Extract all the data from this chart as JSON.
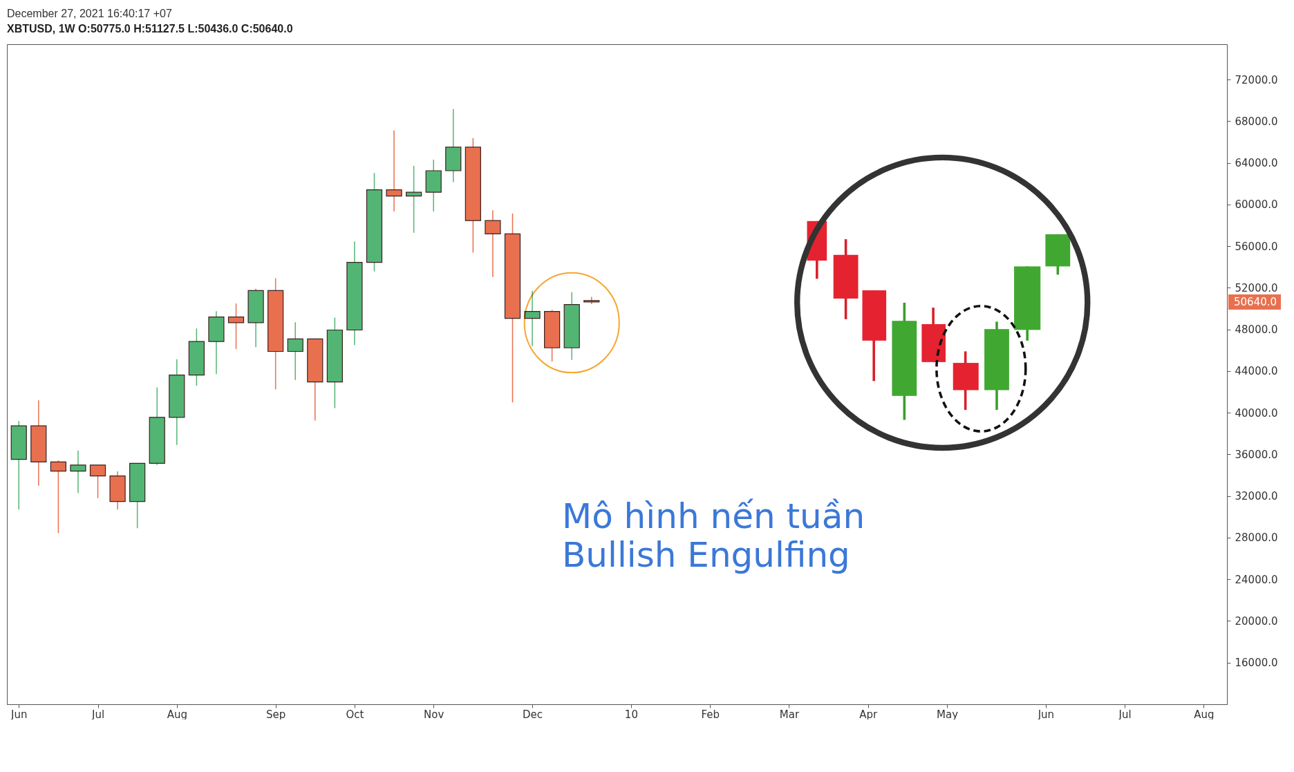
{
  "chart_data": {
    "type": "candlestick",
    "title": "December 27, 2021 16:40:17 +07",
    "subtitle": "XBTUSD, 1W O:50775.0 H:51127.5 L:50436.0 C:50640.0",
    "x": [
      "2021-06-07",
      "2021-06-14",
      "2021-06-21",
      "2021-06-28",
      "2021-07-05",
      "2021-07-12",
      "2021-07-19",
      "2021-07-26",
      "2021-08-02",
      "2021-08-09",
      "2021-08-16",
      "2021-08-23",
      "2021-08-30",
      "2021-09-06",
      "2021-09-13",
      "2021-09-20",
      "2021-09-27",
      "2021-10-04",
      "2021-10-11",
      "2021-10-18",
      "2021-10-25",
      "2021-11-01",
      "2021-11-08",
      "2021-11-15",
      "2021-11-22",
      "2021-11-29",
      "2021-12-06",
      "2021-12-13",
      "2021-12-20",
      "2021-12-27"
    ],
    "ohlc": [
      [
        35530,
        39200,
        30700,
        38740
      ],
      [
        38740,
        41200,
        33000,
        35280
      ],
      [
        35280,
        35420,
        28440,
        34400
      ],
      [
        34400,
        36360,
        32300,
        34980
      ],
      [
        34980,
        34980,
        31800,
        33930
      ],
      [
        33930,
        34370,
        30700,
        31470
      ],
      [
        31470,
        35150,
        28910,
        35150
      ],
      [
        35150,
        42440,
        34980,
        39560
      ],
      [
        39560,
        45140,
        36910,
        43620
      ],
      [
        43620,
        48100,
        42600,
        46850
      ],
      [
        46850,
        49750,
        43710,
        49200
      ],
      [
        49200,
        50500,
        46110,
        48650
      ],
      [
        48650,
        51910,
        46300,
        51740
      ],
      [
        51740,
        52930,
        42240,
        45890
      ],
      [
        45890,
        48700,
        43150,
        47100
      ],
      [
        47100,
        47130,
        39260,
        42960
      ],
      [
        42960,
        49140,
        40450,
        47950
      ],
      [
        47950,
        56450,
        46510,
        54440
      ],
      [
        54440,
        63030,
        53580,
        61420
      ],
      [
        61420,
        67120,
        59340,
        60820
      ],
      [
        60820,
        63720,
        57290,
        61180
      ],
      [
        61180,
        64310,
        59340,
        63250
      ],
      [
        63250,
        69170,
        62150,
        65510
      ],
      [
        65510,
        66390,
        55390,
        58460
      ],
      [
        58460,
        59450,
        53050,
        57180
      ],
      [
        57180,
        59140,
        40990,
        49070
      ],
      [
        49070,
        51700,
        46400,
        49730
      ],
      [
        49730,
        49890,
        44920,
        46240
      ],
      [
        46240,
        51590,
        45070,
        50400
      ],
      [
        50775,
        51127.5,
        50436,
        50640
      ]
    ],
    "colors": [
      "#53b574",
      "#e8704f",
      "#e8704f",
      "#53b574",
      "#e8704f",
      "#e8704f",
      "#53b574",
      "#53b574",
      "#53b574",
      "#53b574",
      "#53b574",
      "#e8704f",
      "#53b574",
      "#e8704f",
      "#53b574",
      "#e8704f",
      "#53b574",
      "#53b574",
      "#53b574",
      "#e8704f",
      "#53b574",
      "#53b574",
      "#53b574",
      "#e8704f",
      "#e8704f",
      "#e8704f",
      "#53b574",
      "#e8704f",
      "#53b574",
      "#e8704f"
    ],
    "xlim": [
      "2021-06-04",
      "2022-08-08"
    ],
    "xticks": [
      {
        "value": "2021-06-07",
        "label": "Jun"
      },
      {
        "value": "2021-07-05",
        "label": "Jul"
      },
      {
        "value": "2021-08-02",
        "label": "Aug"
      },
      {
        "value": "2021-09-06",
        "label": "Sep"
      },
      {
        "value": "2021-10-04",
        "label": "Oct"
      },
      {
        "value": "2021-11-01",
        "label": "Nov"
      },
      {
        "value": "2021-12-06",
        "label": "Dec"
      },
      {
        "value": "2022-01-10",
        "label": "10"
      },
      {
        "value": "2022-02-07",
        "label": "Feb"
      },
      {
        "value": "2022-03-07",
        "label": "Mar"
      },
      {
        "value": "2022-04-04",
        "label": "Apr"
      },
      {
        "value": "2022-05-02",
        "label": "May"
      },
      {
        "value": "2022-06-06",
        "label": "Jun"
      },
      {
        "value": "2022-07-04",
        "label": "Jul"
      },
      {
        "value": "2022-08-01",
        "label": "Aug"
      }
    ],
    "ylim": [
      12000,
      75400
    ],
    "yticks": [
      {
        "value": 16000,
        "label": "16000.0"
      },
      {
        "value": 20000,
        "label": "20000.0"
      },
      {
        "value": 24000,
        "label": "24000.0"
      },
      {
        "value": 28000,
        "label": "28000.0"
      },
      {
        "value": 32000,
        "label": "32000.0"
      },
      {
        "value": 36000,
        "label": "36000.0"
      },
      {
        "value": 40000,
        "label": "40000.0"
      },
      {
        "value": 44000,
        "label": "44000.0"
      },
      {
        "value": 48000,
        "label": "48000.0"
      },
      {
        "value": 52000,
        "label": "52000.0"
      },
      {
        "value": 56000,
        "label": "56000.0"
      },
      {
        "value": 60000,
        "label": "60000.0"
      },
      {
        "value": 64000,
        "label": "64000.0"
      },
      {
        "value": 68000,
        "label": "68000.0"
      },
      {
        "value": 72000,
        "label": "72000.0"
      }
    ],
    "ref_lines": [
      {
        "axis": "y",
        "value": 50640,
        "label": "50640.0",
        "color": "#e8704f"
      }
    ],
    "annotations": [
      "Mô hình nến tuần",
      "Bullish Engulfing"
    ]
  }
}
